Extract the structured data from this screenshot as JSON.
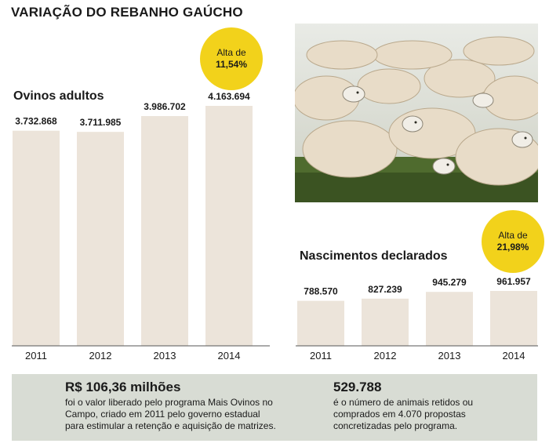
{
  "title": "VARIAÇÃO DO REBANHO GAÚCHO",
  "chart_data": [
    {
      "type": "bar",
      "title": "Ovinos adultos",
      "categories": [
        "2011",
        "2012",
        "2013",
        "2014"
      ],
      "values": [
        3732868,
        3711985,
        3986702,
        4163694
      ],
      "value_labels": [
        "3.732.868",
        "3.711.985",
        "3.986.702",
        "4.163.694"
      ],
      "badge": {
        "line1": "Alta de",
        "line2": "11,54%"
      },
      "bar_color": "#ece4da"
    },
    {
      "type": "bar",
      "title": "Nascimentos declarados",
      "categories": [
        "2011",
        "2012",
        "2013",
        "2014"
      ],
      "values": [
        788570,
        827239,
        945279,
        961957
      ],
      "value_labels": [
        "788.570",
        "827.239",
        "945.279",
        "961.957"
      ],
      "badge": {
        "line1": "Alta de",
        "line2": "21,98%"
      },
      "bar_color": "#ece4da"
    }
  ],
  "footer": {
    "left": {
      "headline": "R$ 106,36 milhões",
      "lines": [
        "foi o valor liberado pelo programa Mais Ovinos no",
        "Campo, criado em 2011 pelo governo estadual",
        "para estimular a retenção e aquisição de matrizes."
      ]
    },
    "right": {
      "headline": "529.788",
      "lines": [
        "é o número de animais retidos ou",
        "comprados em 4.070 propostas",
        "concretizadas pelo programa."
      ]
    }
  },
  "colors": {
    "badge": "#f2d21b",
    "bar": "#ece4da",
    "footer_bg": "#d8dcd4",
    "axis": "#555555"
  }
}
